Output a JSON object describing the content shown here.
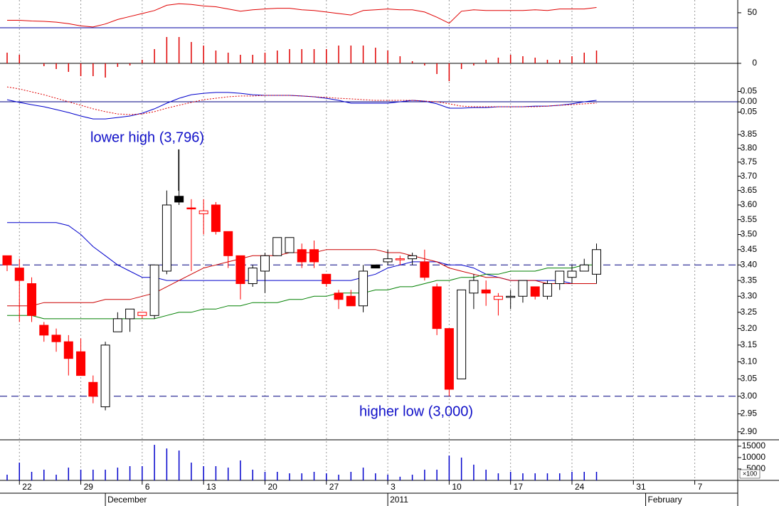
{
  "chart_data": [
    {
      "type": "line",
      "ylim": [
        30,
        67
      ],
      "yticks": [
        50
      ],
      "series": [
        {
          "color": "#e00000",
          "values": [
            40,
            40,
            39,
            38.5,
            37.5,
            35.5,
            32.5,
            31,
            35,
            41,
            45,
            49,
            53,
            60,
            62,
            61,
            59,
            58,
            55,
            52,
            54,
            55,
            56,
            56,
            54,
            53,
            51,
            49,
            47,
            53,
            54,
            55,
            54,
            54,
            51,
            44,
            36,
            52,
            54,
            53,
            53,
            53,
            53,
            54,
            53,
            55,
            55,
            55,
            57
          ]
        }
      ]
    },
    {
      "type": "bar",
      "ylim": [
        -30,
        50
      ],
      "yticks": [
        0
      ],
      "color": "#e00000",
      "values": [
        15,
        12,
        0,
        -4,
        -8,
        -12,
        -18,
        -18,
        -20,
        -5,
        -3,
        5,
        20,
        37,
        37,
        30,
        25,
        18,
        15,
        12,
        12,
        15,
        18,
        20,
        20,
        20,
        20,
        25,
        25,
        25,
        22,
        18,
        10,
        3,
        -3,
        -15,
        -25,
        -8,
        -3,
        5,
        8,
        12,
        10,
        8,
        5,
        5,
        10,
        15,
        18
      ]
    },
    {
      "type": "line",
      "ylim": [
        -0.093,
        0.186
      ],
      "yticks": [
        0.05,
        {
          "value": 0,
          "label": "0.00"
        },
        -0.05
      ],
      "series": [
        {
          "color": "#0000cc",
          "values": [
            0.01,
            -0.003,
            -0.014,
            -0.024,
            -0.038,
            -0.052,
            -0.069,
            -0.083,
            -0.083,
            -0.076,
            -0.069,
            -0.055,
            -0.034,
            -0.007,
            0.017,
            0.034,
            0.041,
            0.045,
            0.045,
            0.041,
            0.034,
            0.031,
            0.031,
            0.031,
            0.028,
            0.024,
            0.017,
            0.007,
            -0.007,
            -0.007,
            -0.007,
            -0.007,
            0,
            0.007,
            0.003,
            -0.01,
            -0.031,
            -0.031,
            -0.028,
            -0.028,
            -0.024,
            -0.024,
            -0.024,
            -0.021,
            -0.021,
            -0.017,
            -0.01,
            0,
            0.007
          ]
        },
        {
          "color": "#e00000",
          "dash": "2,2",
          "values": [
            0.072,
            0.062,
            0.048,
            0.034,
            0.017,
            0,
            -0.017,
            -0.034,
            -0.048,
            -0.059,
            -0.062,
            -0.059,
            -0.048,
            -0.031,
            -0.017,
            -0.003,
            0.01,
            0.017,
            0.024,
            0.028,
            0.028,
            0.031,
            0.031,
            0.031,
            0.028,
            0.024,
            0.021,
            0.017,
            0.014,
            0.01,
            0.007,
            0.007,
            0.007,
            0.007,
            0.003,
            0,
            -0.01,
            -0.021,
            -0.024,
            -0.024,
            -0.024,
            -0.024,
            -0.024,
            -0.024,
            -0.021,
            -0.017,
            -0.014,
            -0.01,
            -0.007
          ]
        }
      ]
    },
    {
      "type": "candlestick",
      "log": true,
      "ylim": [
        2.878,
        3.9
      ],
      "yticks": [
        3.85,
        {
          "value": 3.8,
          "label": "3.80"
        },
        3.75,
        {
          "value": 3.7,
          "label": "3.70"
        },
        3.65,
        {
          "value": 3.6,
          "label": "3.60"
        },
        3.55,
        {
          "value": 3.5,
          "label": "3.50"
        },
        3.45,
        {
          "value": 3.4,
          "label": "3.40"
        },
        3.35,
        {
          "value": 3.3,
          "label": "3.30"
        },
        3.25,
        {
          "value": 3.2,
          "label": "3.20"
        },
        3.15,
        {
          "value": 3.1,
          "label": "3.10"
        },
        3.05,
        {
          "value": 3,
          "label": "3.00"
        },
        2.95,
        {
          "value": 2.9,
          "label": "2.90"
        }
      ],
      "open": [
        3.43,
        3.39,
        3.34,
        3.21,
        3.18,
        3.16,
        3.13,
        3.04,
        2.97,
        3.19,
        3.23,
        3.24,
        3.24,
        3.38,
        3.61,
        3.59,
        3.57,
        3.6,
        3.51,
        3.43,
        3.34,
        3.38,
        3.43,
        3.44,
        3.45,
        3.45,
        3.37,
        3.31,
        3.3,
        3.27,
        3.39,
        3.41,
        3.42,
        3.42,
        3.41,
        3.33,
        3.2,
        3.05,
        3.31,
        3.32,
        3.3,
        3.3,
        3.3,
        3.33,
        3.3,
        3.34,
        3.36,
        3.38,
        3.37
      ],
      "high": [
        3.43,
        3.42,
        3.36,
        3.22,
        3.2,
        3.18,
        3.17,
        3.06,
        3.16,
        3.25,
        3.26,
        3.25,
        3.4,
        3.65,
        3.796,
        3.62,
        3.62,
        3.61,
        3.51,
        3.43,
        3.4,
        3.44,
        3.49,
        3.49,
        3.47,
        3.48,
        3.37,
        3.32,
        3.32,
        3.4,
        3.4,
        3.45,
        3.43,
        3.44,
        3.45,
        3.34,
        3.2,
        3.32,
        3.37,
        3.35,
        3.31,
        3.32,
        3.35,
        3.33,
        3.35,
        3.38,
        3.4,
        3.42,
        3.47
      ],
      "low": [
        3.38,
        3.22,
        3.22,
        3.16,
        3.13,
        3.06,
        3.06,
        2.98,
        2.96,
        3.19,
        3.19,
        3.23,
        3.23,
        3.37,
        3.6,
        3.38,
        3.5,
        3.5,
        3.39,
        3.29,
        3.33,
        3.31,
        3.43,
        3.44,
        3.39,
        3.39,
        3.33,
        3.26,
        3.27,
        3.25,
        3.39,
        3.4,
        3.4,
        3.4,
        3.35,
        3.18,
        3.0,
        3.05,
        3.26,
        3.27,
        3.24,
        3.26,
        3.28,
        3.29,
        3.29,
        3.32,
        3.34,
        3.38,
        3.34
      ],
      "close": [
        3.4,
        3.35,
        3.24,
        3.18,
        3.16,
        3.11,
        3.06,
        3.0,
        3.15,
        3.23,
        3.26,
        3.25,
        3.4,
        3.6,
        3.63,
        3.59,
        3.58,
        3.51,
        3.43,
        3.34,
        3.39,
        3.43,
        3.49,
        3.49,
        3.41,
        3.41,
        3.34,
        3.29,
        3.27,
        3.38,
        3.4,
        3.42,
        3.42,
        3.43,
        3.36,
        3.2,
        3.02,
        3.32,
        3.35,
        3.31,
        3.29,
        3.3,
        3.35,
        3.3,
        3.34,
        3.38,
        3.38,
        3.4,
        3.45
      ],
      "body_colors": [
        "#ff0000",
        "#ff0000",
        "#ff0000",
        "#ff0000",
        "#ff0000",
        "#ff0000",
        "#ff0000",
        "#ff0000",
        "#ffffff",
        "#ffffff",
        "#ffffff",
        "#ffffff",
        "#ffffff",
        "#ffffff",
        "#000000",
        "#ff0000",
        "#ffffff",
        "#ff0000",
        "#ff0000",
        "#ff0000",
        "#ffffff",
        "#ffffff",
        "#ffffff",
        "#ffffff",
        "#ff0000",
        "#ff0000",
        "#ff0000",
        "#ff0000",
        "#ff0000",
        "#ffffff",
        "#000000",
        "#ffffff",
        "#ffffff",
        "#ffffff",
        "#ff0000",
        "#ff0000",
        "#ff0000",
        "#ffffff",
        "#ffffff",
        "#ff0000",
        "#ffffff",
        "#ffffff",
        "#ffffff",
        "#ff0000",
        "#ffffff",
        "#ffffff",
        "#ffffff",
        "#ffffff",
        "#ffffff"
      ],
      "edge_colors": [
        "#ff0000",
        "#ff0000",
        "#ff0000",
        "#ff0000",
        "#ff0000",
        "#ff0000",
        "#ff0000",
        "#ff0000",
        "#000000",
        "#000000",
        "#000000",
        "#ff0000",
        "#000000",
        "#000000",
        "#000000",
        "#ff0000",
        "#ff0000",
        "#ff0000",
        "#ff0000",
        "#ff0000",
        "#000000",
        "#000000",
        "#000000",
        "#000000",
        "#ff0000",
        "#ff0000",
        "#ff0000",
        "#ff0000",
        "#ff0000",
        "#000000",
        "#000000",
        "#000000",
        "#ff0000",
        "#000000",
        "#ff0000",
        "#ff0000",
        "#ff0000",
        "#000000",
        "#000000",
        "#ff0000",
        "#ff0000",
        "#000000",
        "#000000",
        "#ff0000",
        "#000000",
        "#000000",
        "#000000",
        "#000000",
        "#000000"
      ],
      "series": [
        {
          "color": "#0000cc",
          "values": [
            3.54,
            3.54,
            3.54,
            3.54,
            3.54,
            3.53,
            3.5,
            3.46,
            3.43,
            3.4,
            3.38,
            3.36,
            3.36,
            3.35,
            3.35,
            3.35,
            3.35,
            3.35,
            3.35,
            3.35,
            3.35,
            3.35,
            3.35,
            3.35,
            3.35,
            3.35,
            3.35,
            3.35,
            3.35,
            3.36,
            3.37,
            3.39,
            3.4,
            3.41,
            3.41,
            3.41,
            3.4,
            3.4,
            3.39,
            3.37,
            3.36,
            3.35,
            3.35,
            3.35,
            3.35,
            3.35,
            3.34,
            3.34,
            3.34
          ]
        },
        {
          "color": "#cc0000",
          "values": [
            3.27,
            3.27,
            3.27,
            3.28,
            3.28,
            3.28,
            3.28,
            3.28,
            3.29,
            3.29,
            3.29,
            3.3,
            3.31,
            3.33,
            3.35,
            3.37,
            3.39,
            3.4,
            3.41,
            3.42,
            3.43,
            3.43,
            3.43,
            3.44,
            3.44,
            3.44,
            3.45,
            3.45,
            3.45,
            3.45,
            3.45,
            3.44,
            3.44,
            3.43,
            3.42,
            3.41,
            3.39,
            3.38,
            3.37,
            3.36,
            3.36,
            3.35,
            3.35,
            3.35,
            3.34,
            3.34,
            3.34,
            3.34,
            3.34
          ]
        },
        {
          "color": "#008000",
          "values": [
            3.24,
            3.24,
            3.24,
            3.23,
            3.23,
            3.23,
            3.23,
            3.23,
            3.23,
            3.23,
            3.23,
            3.23,
            3.23,
            3.24,
            3.25,
            3.25,
            3.26,
            3.26,
            3.27,
            3.27,
            3.28,
            3.28,
            3.28,
            3.29,
            3.29,
            3.3,
            3.3,
            3.31,
            3.31,
            3.31,
            3.32,
            3.32,
            3.33,
            3.33,
            3.34,
            3.35,
            3.35,
            3.36,
            3.36,
            3.37,
            3.37,
            3.38,
            3.38,
            3.38,
            3.39,
            3.39,
            3.39,
            3.4,
            3.4
          ]
        }
      ],
      "hlines": [
        3.4,
        3.0
      ],
      "annotations": [
        "lower high (3,796)",
        "higher low (3,000)"
      ]
    },
    {
      "type": "bar",
      "ylim": [
        0,
        17800
      ],
      "yticks": [
        15000,
        10000,
        5000
      ],
      "unit_label": "×100",
      "color": "#0000cc",
      "values": [
        2500,
        7800,
        3750,
        4700,
        2500,
        5600,
        4700,
        4700,
        4700,
        5600,
        6250,
        6250,
        15600,
        14000,
        13100,
        7800,
        6250,
        6250,
        5600,
        8750,
        4700,
        3750,
        3750,
        3100,
        3100,
        3750,
        3100,
        2500,
        3750,
        5600,
        3100,
        2500,
        1600,
        2500,
        4700,
        4700,
        10900,
        10000,
        6900,
        4700,
        3100,
        3750,
        3100,
        3100,
        3100,
        3100,
        3750,
        3750,
        3750
      ],
      "xlim": [
        -0.58,
        59.5
      ],
      "xticks": [
        {
          "value": 1,
          "label": "22"
        },
        {
          "value": 6,
          "label": "29"
        },
        {
          "value": 11,
          "label": "6"
        },
        {
          "value": 16,
          "label": "13"
        },
        {
          "value": 21,
          "label": "20"
        },
        {
          "value": 26,
          "label": "27"
        },
        {
          "value": 31,
          "label": "3"
        },
        {
          "value": 36,
          "label": "10"
        },
        {
          "value": 41,
          "label": "17"
        },
        {
          "value": 46,
          "label": "24"
        },
        {
          "value": 51,
          "label": "31"
        },
        {
          "value": 56,
          "label": "7"
        }
      ],
      "month_ticks": [
        {
          "value": 8,
          "label": "December"
        },
        {
          "value": 31,
          "label": "2011"
        },
        {
          "value": 52,
          "label": "February"
        }
      ]
    }
  ]
}
